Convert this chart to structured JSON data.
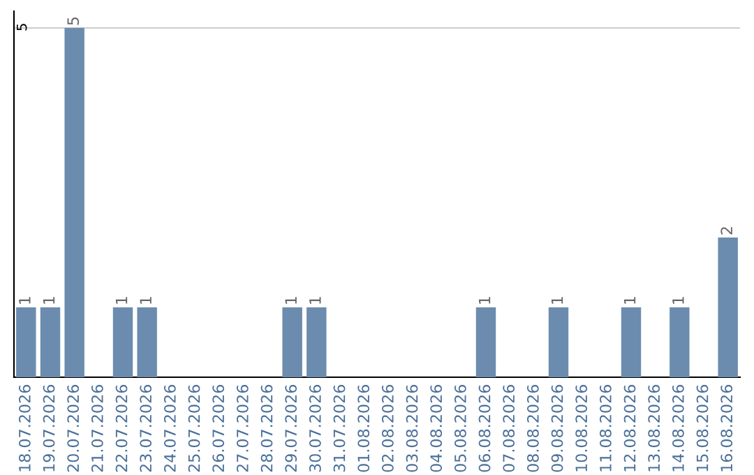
{
  "chart_data": {
    "type": "bar",
    "categories": [
      "18.07.2026",
      "19.07.2026",
      "20.07.2026",
      "21.07.2026",
      "22.07.2026",
      "23.07.2026",
      "24.07.2026",
      "25.07.2026",
      "26.07.2026",
      "27.07.2026",
      "28.07.2026",
      "29.07.2026",
      "30.07.2026",
      "31.07.2026",
      "01.08.2026",
      "02.08.2026",
      "03.08.2026",
      "04.08.2026",
      "05.08.2026",
      "06.08.2026",
      "07.08.2026",
      "08.08.2026",
      "09.08.2026",
      "10.08.2026",
      "11.08.2026",
      "12.08.2026",
      "13.08.2026",
      "14.08.2026",
      "15.08.2026",
      "16.08.2026"
    ],
    "values": [
      1,
      1,
      5,
      0,
      1,
      1,
      0,
      0,
      0,
      0,
      0,
      1,
      1,
      0,
      0,
      0,
      0,
      0,
      0,
      1,
      0,
      0,
      1,
      0,
      0,
      1,
      0,
      1,
      0,
      2
    ],
    "value_labels": [
      "1",
      "1",
      "5",
      null,
      "1",
      "1",
      null,
      null,
      null,
      null,
      null,
      "1",
      "1",
      null,
      null,
      null,
      null,
      null,
      null,
      "1",
      null,
      null,
      "1",
      null,
      null,
      "1",
      null,
      "1",
      null,
      "2"
    ],
    "color": "#6b8cae",
    "ylim": [
      0,
      5.24
    ],
    "yticks": [
      5
    ],
    "grid": "y"
  }
}
